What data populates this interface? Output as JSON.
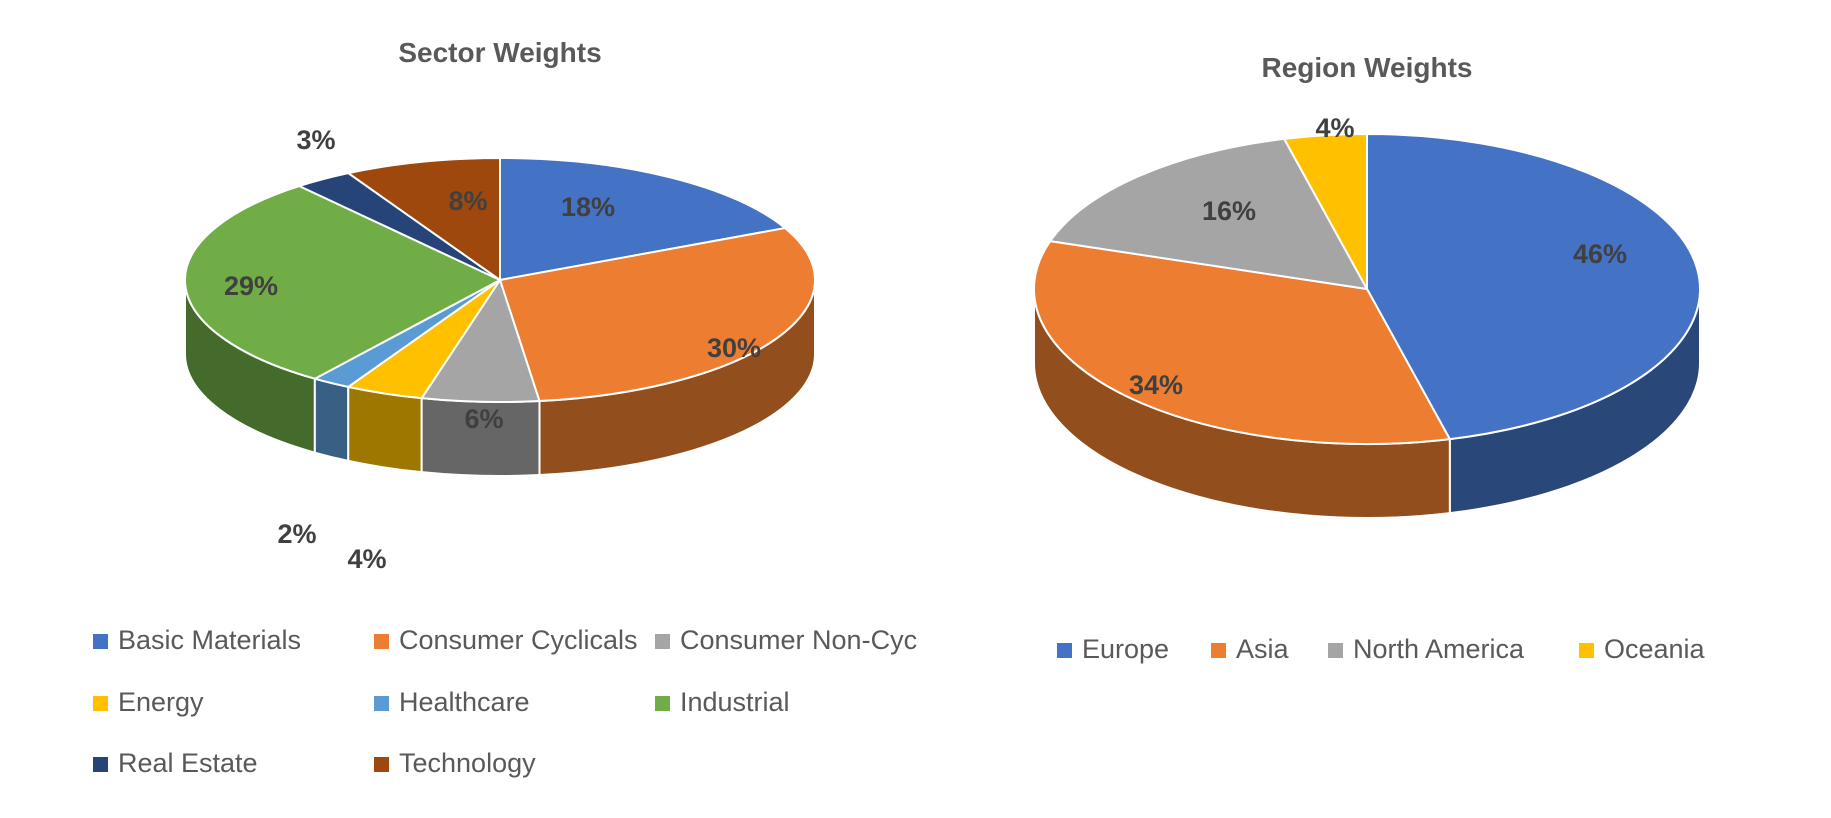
{
  "chart_data": [
    {
      "type": "pie",
      "title": "Sector Weights",
      "legend_position": "bottom",
      "three_d": true,
      "categories": [
        "Basic Materials",
        "Consumer Cyclicals",
        "Consumer Non-Cyc",
        "Energy",
        "Healthcare",
        "Industrial",
        "Real Estate",
        "Technology"
      ],
      "values": [
        18,
        30,
        6,
        4,
        2,
        29,
        3,
        8
      ],
      "labels": [
        "18%",
        "30%",
        "6%",
        "4%",
        "2%",
        "29%",
        "3%",
        "8%"
      ],
      "colors": [
        "#4472C4",
        "#ED7D31",
        "#A5A5A5",
        "#FFC000",
        "#5B9BD5",
        "#70AD47",
        "#264478",
        "#9E480E"
      ]
    },
    {
      "type": "pie",
      "title": "Region Weights",
      "legend_position": "bottom",
      "three_d": true,
      "categories": [
        "Europe",
        "Asia",
        "North America",
        "Oceania"
      ],
      "values": [
        46,
        34,
        16,
        4
      ],
      "labels": [
        "46%",
        "34%",
        "16%",
        "4%"
      ],
      "colors": [
        "#4472C4",
        "#ED7D31",
        "#A5A5A5",
        "#FFC000"
      ]
    }
  ]
}
